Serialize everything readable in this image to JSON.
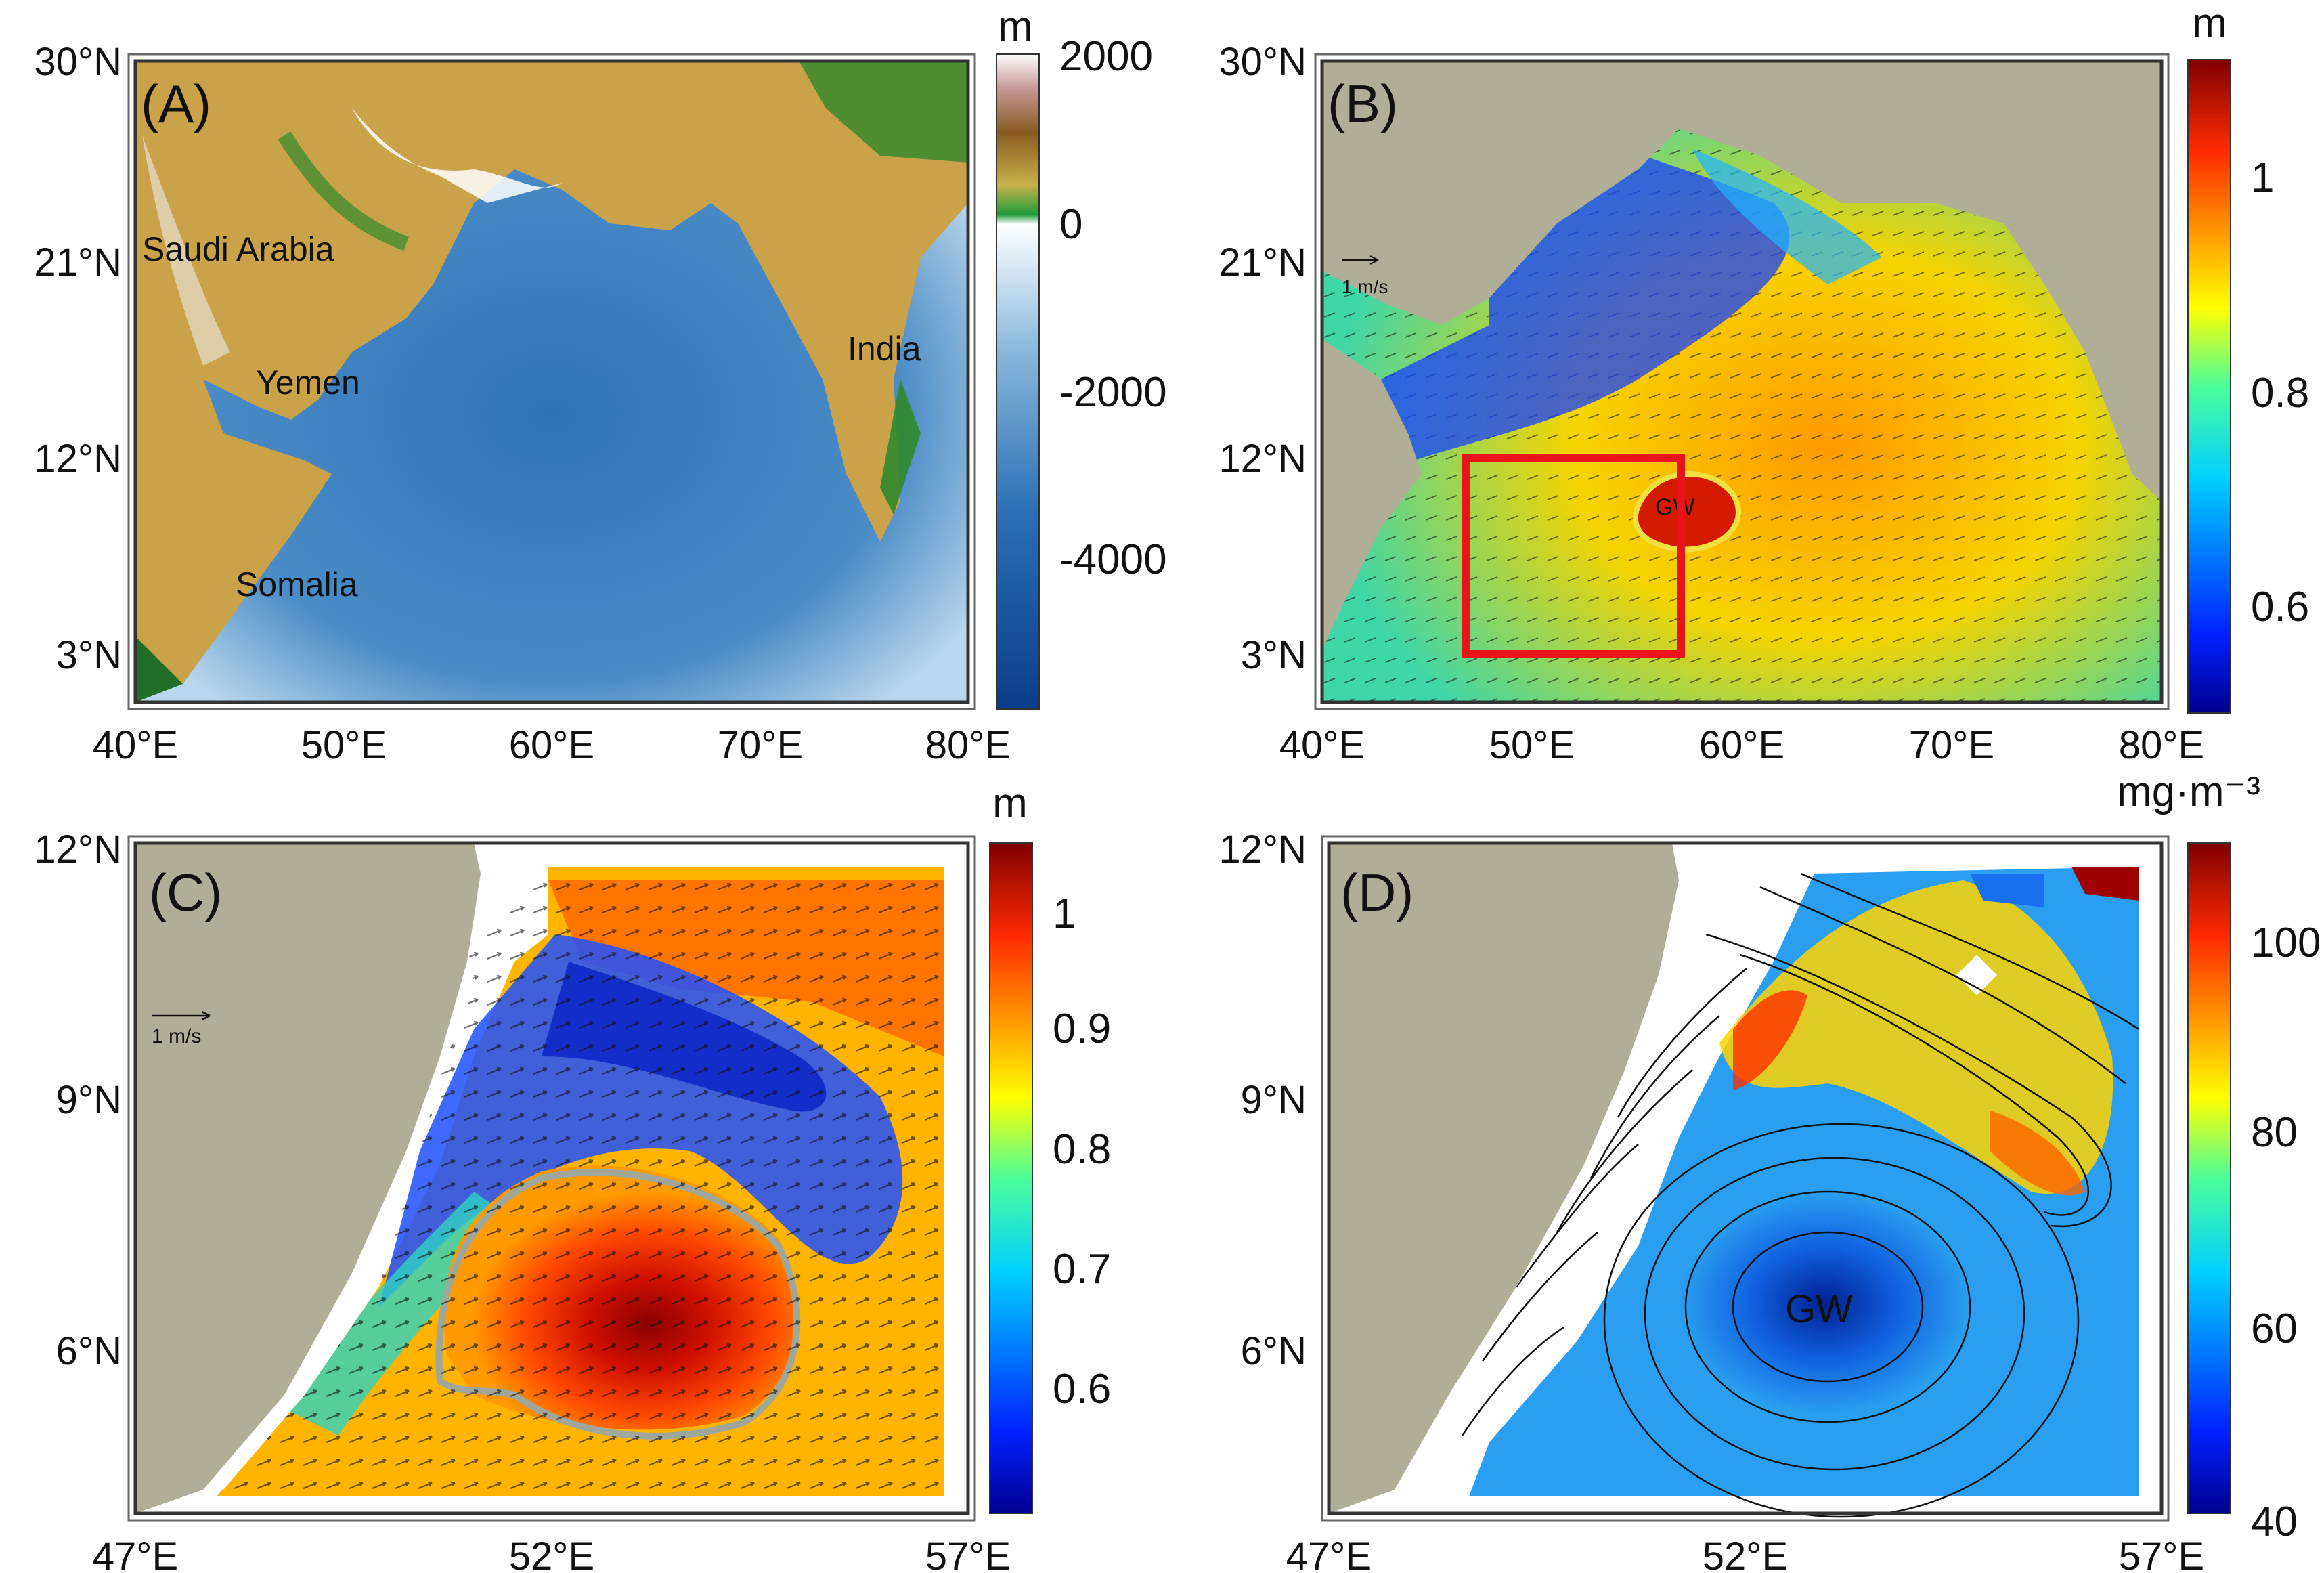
{
  "panels": {
    "a": {
      "label": "(A)",
      "lat_ticks": [
        "30°N",
        "21°N",
        "12°N",
        "3°N"
      ],
      "lon_ticks": [
        "40°E",
        "50°E",
        "60°E",
        "70°E",
        "80°E"
      ],
      "places": [
        "Saudi Arabia",
        "Yemen",
        "Somalia",
        "India"
      ],
      "colorbar": {
        "unit": "m",
        "ticks": [
          "2000",
          "0",
          "-2000",
          "-4000"
        ]
      }
    },
    "b": {
      "label": "(B)",
      "lat_ticks": [
        "30°N",
        "21°N",
        "12°N",
        "3°N"
      ],
      "lon_ticks": [
        "40°E",
        "50°E",
        "60°E",
        "70°E",
        "80°E"
      ],
      "vector_scale": "1 m/s",
      "eddy": "GW",
      "colorbar": {
        "unit": "m",
        "ticks": [
          "1",
          "0.8",
          "0.6"
        ]
      }
    },
    "c": {
      "label": "(C)",
      "lat_ticks": [
        "12°N",
        "9°N",
        "6°N"
      ],
      "lon_ticks": [
        "47°E",
        "52°E",
        "57°E"
      ],
      "vector_scale": "1 m/s",
      "colorbar": {
        "unit": "m",
        "ticks": [
          "1",
          "0.9",
          "0.8",
          "0.7",
          "0.6"
        ]
      }
    },
    "d": {
      "label": "(D)",
      "lat_ticks": [
        "12°N",
        "9°N",
        "6°N"
      ],
      "lon_ticks": [
        "47°E",
        "52°E",
        "57°E"
      ],
      "eddy": "GW",
      "colorbar": {
        "unit": "mg·m⁻³",
        "ticks": [
          "100",
          "80",
          "60",
          "40"
        ]
      }
    }
  },
  "colors": {
    "land": "#b1ae98",
    "box": "#e8141a",
    "eddy_contour": "#9fa79a"
  }
}
